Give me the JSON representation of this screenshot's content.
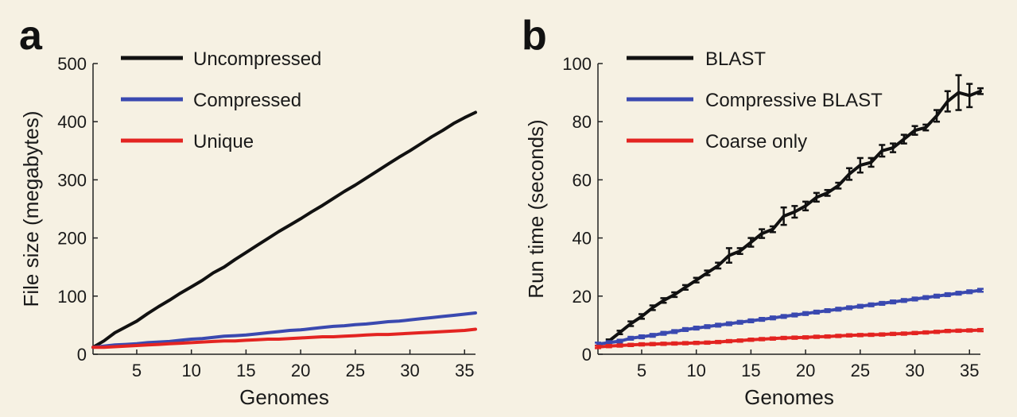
{
  "chart_data": [
    {
      "panel": "a",
      "type": "line",
      "xlabel": "Genomes",
      "ylabel": "File size (megabytes)",
      "xlim": [
        1,
        36
      ],
      "ylim": [
        0,
        500
      ],
      "xticks": [
        5,
        10,
        15,
        20,
        25,
        30,
        35
      ],
      "yticks": [
        0,
        100,
        200,
        300,
        400,
        500
      ],
      "legend_position": "top-left",
      "series": [
        {
          "name": "Uncompressed",
          "color": "#111111",
          "x": [
            1,
            2,
            3,
            4,
            5,
            6,
            7,
            8,
            9,
            10,
            11,
            12,
            13,
            14,
            15,
            16,
            17,
            18,
            19,
            20,
            21,
            22,
            23,
            24,
            25,
            26,
            27,
            28,
            29,
            30,
            31,
            32,
            33,
            34,
            35,
            36
          ],
          "y": [
            12,
            23,
            37,
            47,
            57,
            70,
            82,
            93,
            105,
            116,
            127,
            140,
            150,
            163,
            175,
            187,
            199,
            211,
            222,
            233,
            245,
            256,
            268,
            280,
            291,
            303,
            315,
            327,
            339,
            350,
            362,
            374,
            385,
            397,
            407,
            416
          ]
        },
        {
          "name": "Compressed",
          "color": "#3a49b0",
          "x": [
            1,
            2,
            3,
            4,
            5,
            6,
            7,
            8,
            9,
            10,
            11,
            12,
            13,
            14,
            15,
            16,
            17,
            18,
            19,
            20,
            21,
            22,
            23,
            24,
            25,
            26,
            27,
            28,
            29,
            30,
            31,
            32,
            33,
            34,
            35,
            36
          ],
          "y": [
            12,
            14,
            16,
            17,
            18,
            20,
            21,
            22,
            24,
            26,
            27,
            29,
            31,
            32,
            33,
            35,
            37,
            39,
            41,
            42,
            44,
            46,
            48,
            49,
            51,
            52,
            54,
            56,
            57,
            59,
            61,
            63,
            65,
            67,
            69,
            71
          ]
        },
        {
          "name": "Unique",
          "color": "#e32421",
          "x": [
            1,
            2,
            3,
            4,
            5,
            6,
            7,
            8,
            9,
            10,
            11,
            12,
            13,
            14,
            15,
            16,
            17,
            18,
            19,
            20,
            21,
            22,
            23,
            24,
            25,
            26,
            27,
            28,
            29,
            30,
            31,
            32,
            33,
            34,
            35,
            36
          ],
          "y": [
            12,
            12,
            13,
            14,
            15,
            16,
            17,
            18,
            19,
            20,
            21,
            22,
            23,
            23,
            24,
            25,
            26,
            26,
            27,
            28,
            29,
            30,
            30,
            31,
            32,
            33,
            34,
            34,
            35,
            36,
            37,
            38,
            39,
            40,
            41,
            43
          ]
        }
      ]
    },
    {
      "panel": "b",
      "type": "line",
      "xlabel": "Genomes",
      "ylabel": "Run time (seconds)",
      "xlim": [
        1,
        36
      ],
      "ylim": [
        0,
        100
      ],
      "xticks": [
        5,
        10,
        15,
        20,
        25,
        30,
        35
      ],
      "yticks": [
        0,
        20,
        40,
        60,
        80,
        100
      ],
      "legend_position": "top-left",
      "error_bars": true,
      "series": [
        {
          "name": "BLAST",
          "color": "#111111",
          "x": [
            2,
            3,
            4,
            5,
            6,
            7,
            8,
            9,
            10,
            11,
            12,
            13,
            14,
            15,
            16,
            17,
            18,
            19,
            20,
            21,
            22,
            23,
            24,
            25,
            26,
            27,
            28,
            29,
            30,
            31,
            32,
            33,
            34,
            35,
            36
          ],
          "y": [
            4.5,
            7.5,
            10.5,
            13,
            16,
            18.5,
            20.5,
            23,
            25.5,
            28,
            30.5,
            34,
            35.5,
            38.5,
            41.5,
            43,
            47.5,
            49,
            51,
            54,
            55.5,
            58,
            62,
            65,
            66,
            70,
            71,
            74,
            77,
            78,
            82,
            87,
            90,
            89,
            90.5
          ],
          "err": [
            0.6,
            0.6,
            0.8,
            0.8,
            0.8,
            0.8,
            0.8,
            0.8,
            0.8,
            0.8,
            1,
            2.5,
            1,
            1.5,
            1.5,
            1,
            3,
            2,
            1.5,
            1.5,
            1,
            1,
            2,
            2.5,
            1.5,
            2,
            1.5,
            1.5,
            1.5,
            1,
            2,
            3.5,
            6,
            4,
            1
          ]
        },
        {
          "name": "Compressive BLAST",
          "color": "#3a49b0",
          "x": [
            1,
            2,
            3,
            4,
            5,
            6,
            7,
            8,
            9,
            10,
            11,
            12,
            13,
            14,
            15,
            16,
            17,
            18,
            19,
            20,
            21,
            22,
            23,
            24,
            25,
            26,
            27,
            28,
            29,
            30,
            31,
            32,
            33,
            34,
            35,
            36
          ],
          "y": [
            3.5,
            4,
            4.5,
            5.5,
            6,
            6.5,
            7.2,
            7.8,
            8.5,
            9,
            9.5,
            10,
            10.5,
            11,
            11.5,
            12,
            12.5,
            13,
            13.5,
            14,
            14.5,
            15,
            15.5,
            16,
            16.5,
            17,
            17.5,
            18,
            18.5,
            19,
            19.5,
            20,
            20.5,
            21,
            21.5,
            22
          ],
          "err": [
            0.5,
            0.5,
            0.5,
            0.5,
            0.5,
            0.5,
            0.5,
            0.5,
            0.5,
            0.5,
            0.5,
            0.5,
            0.5,
            0.5,
            0.5,
            0.5,
            0.5,
            0.5,
            0.5,
            0.5,
            0.5,
            0.5,
            0.5,
            0.5,
            0.5,
            0.5,
            0.5,
            0.5,
            0.5,
            0.5,
            0.5,
            0.5,
            0.5,
            0.5,
            0.5,
            0.5
          ]
        },
        {
          "name": "Coarse only",
          "color": "#e32421",
          "x": [
            1,
            2,
            3,
            4,
            5,
            6,
            7,
            8,
            9,
            10,
            11,
            12,
            13,
            14,
            15,
            16,
            17,
            18,
            19,
            20,
            21,
            22,
            23,
            24,
            25,
            26,
            27,
            28,
            29,
            30,
            31,
            32,
            33,
            34,
            35,
            36
          ],
          "y": [
            2.5,
            2.8,
            3,
            3.2,
            3.4,
            3.5,
            3.6,
            3.7,
            3.8,
            3.9,
            4,
            4.2,
            4.5,
            4.7,
            5,
            5.2,
            5.4,
            5.6,
            5.7,
            5.8,
            6,
            6.1,
            6.3,
            6.5,
            6.6,
            6.7,
            6.8,
            7,
            7.1,
            7.3,
            7.5,
            7.7,
            8,
            8.1,
            8.2,
            8.3
          ],
          "err": [
            0.4,
            0.4,
            0.4,
            0.4,
            0.4,
            0.4,
            0.4,
            0.4,
            0.4,
            0.4,
            0.4,
            0.4,
            0.4,
            0.4,
            0.4,
            0.4,
            0.4,
            0.4,
            0.4,
            0.4,
            0.4,
            0.4,
            0.4,
            0.4,
            0.4,
            0.4,
            0.4,
            0.4,
            0.4,
            0.4,
            0.4,
            0.4,
            0.4,
            0.4,
            0.4,
            0.4
          ]
        }
      ]
    }
  ]
}
